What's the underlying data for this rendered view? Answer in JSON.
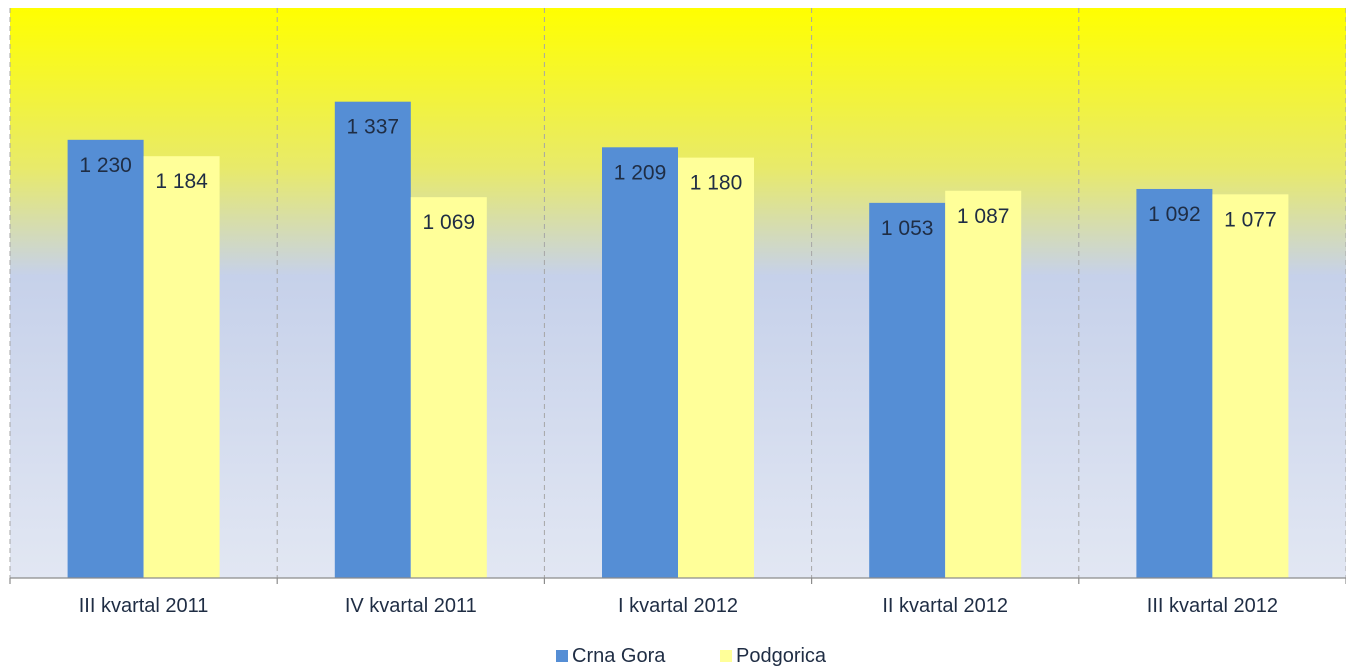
{
  "chart_data": {
    "type": "bar",
    "title": "",
    "xlabel": "",
    "ylabel": "",
    "categories": [
      "III kvartal 2011",
      "IV kvartal 2011",
      "I kvartal 2012",
      "II kvartal 2012",
      "III kvartal 2012"
    ],
    "series": [
      {
        "name": "Crna Gora",
        "color": "#558ed5",
        "values": [
          1230,
          1337,
          1209,
          1053,
          1092
        ],
        "labels": [
          "1 230",
          "1 337",
          "1 209",
          "1 053",
          "1 092"
        ]
      },
      {
        "name": "Podgorica",
        "color": "#ffff99",
        "values": [
          1184,
          1069,
          1180,
          1087,
          1077
        ],
        "labels": [
          "1 184",
          "1 069",
          "1 180",
          "1 087",
          "1 077"
        ]
      }
    ],
    "ylim": [
      0,
      1600
    ],
    "grid": "vertical dashed category separators",
    "legend": "bottom-center",
    "background": "gradient: yellow top to light blue bottom"
  }
}
